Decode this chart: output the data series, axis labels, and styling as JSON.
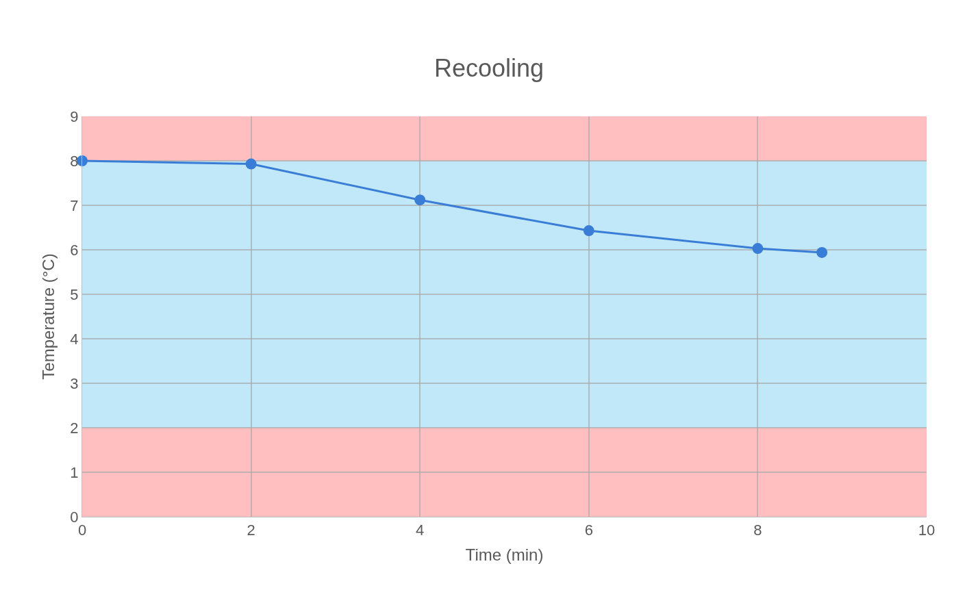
{
  "chart_data": {
    "type": "line",
    "title": "Recooling",
    "xlabel": "Time (min)",
    "ylabel": "Temperature (°C)",
    "x": [
      0,
      2,
      4,
      6,
      8,
      8.76
    ],
    "series": [
      {
        "color": "#3a7dd6",
        "values": [
          8.0,
          7.93,
          7.12,
          6.43,
          6.03,
          5.94
        ]
      }
    ],
    "xlim": [
      0,
      10
    ],
    "xticks": [
      0,
      2,
      4,
      6,
      8,
      10
    ],
    "ylim": [
      0,
      9
    ],
    "yticks": [
      0,
      1,
      2,
      3,
      4,
      5,
      6,
      7,
      8,
      9
    ],
    "grid": true,
    "marker": "circle",
    "line_style": "solid",
    "bands": [
      {
        "axis": "y",
        "from": 8,
        "to": 9,
        "color": "#ffbfc0"
      },
      {
        "axis": "y",
        "from": 2,
        "to": 8,
        "color": "#c0e8f8"
      },
      {
        "axis": "y",
        "from": 0,
        "to": 2,
        "color": "#ffbfc0"
      }
    ]
  }
}
